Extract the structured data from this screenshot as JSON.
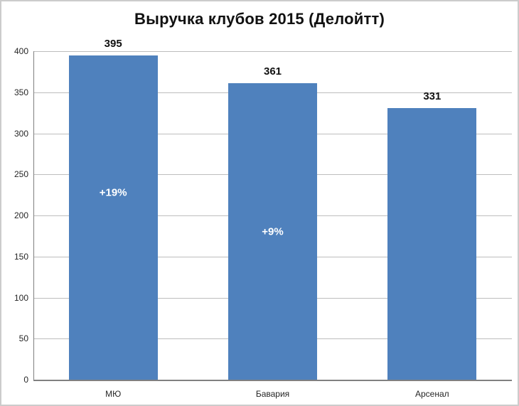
{
  "chart_data": {
    "type": "bar",
    "title": "Выручка клубов 2015 (Делойтт)",
    "categories": [
      "МЮ",
      "Бавария",
      "Арсенал"
    ],
    "values": [
      395,
      361,
      331
    ],
    "value_labels": [
      "395",
      "361",
      "331"
    ],
    "inner_labels": [
      "+19%",
      "+9%",
      null
    ],
    "inner_label_positions": [
      228,
      180,
      null
    ],
    "xlabel": "",
    "ylabel": "",
    "ylim": [
      0,
      400
    ],
    "yticks": [
      0,
      50,
      100,
      150,
      200,
      250,
      300,
      350,
      400
    ],
    "grid": true,
    "legend": false,
    "bar_color": "#4f81bd",
    "gridline_color": "#bdbdbd",
    "axis_color": "#808080"
  }
}
